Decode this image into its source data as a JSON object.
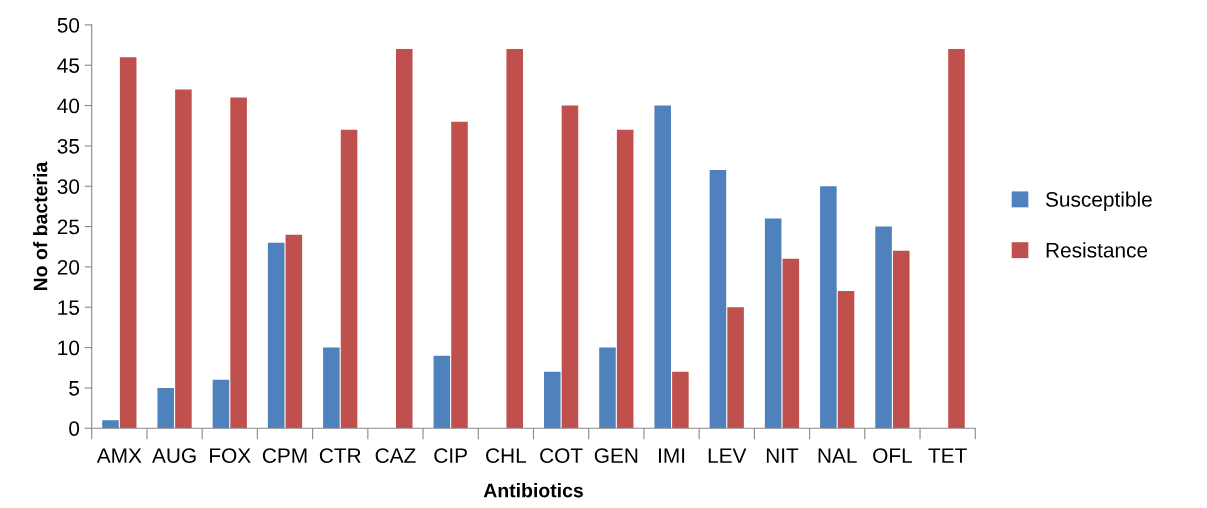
{
  "chart_data": {
    "type": "bar",
    "xlabel": "Antibiotics",
    "ylabel": "No of bacteria",
    "categories": [
      "AMX",
      "AUG",
      "FOX",
      "CPM",
      "CTR",
      "CAZ",
      "CIP",
      "CHL",
      "COT",
      "GEN",
      "IMI",
      "LEV",
      "NIT",
      "NAL",
      "OFL",
      "TET"
    ],
    "series": [
      {
        "name": "Susceptible",
        "color": "#4f81bd",
        "values": [
          1,
          5,
          6,
          23,
          10,
          0,
          9,
          0,
          7,
          10,
          40,
          32,
          26,
          30,
          25,
          0
        ]
      },
      {
        "name": "Resistance",
        "color": "#c0504d",
        "values": [
          46,
          42,
          41,
          24,
          37,
          47,
          38,
          47,
          40,
          37,
          7,
          15,
          21,
          17,
          22,
          47
        ]
      }
    ],
    "ylim": [
      0,
      50
    ],
    "yticks": [
      0,
      5,
      10,
      15,
      20,
      25,
      30,
      35,
      40,
      45,
      50
    ],
    "grid": false,
    "legend": "right"
  }
}
